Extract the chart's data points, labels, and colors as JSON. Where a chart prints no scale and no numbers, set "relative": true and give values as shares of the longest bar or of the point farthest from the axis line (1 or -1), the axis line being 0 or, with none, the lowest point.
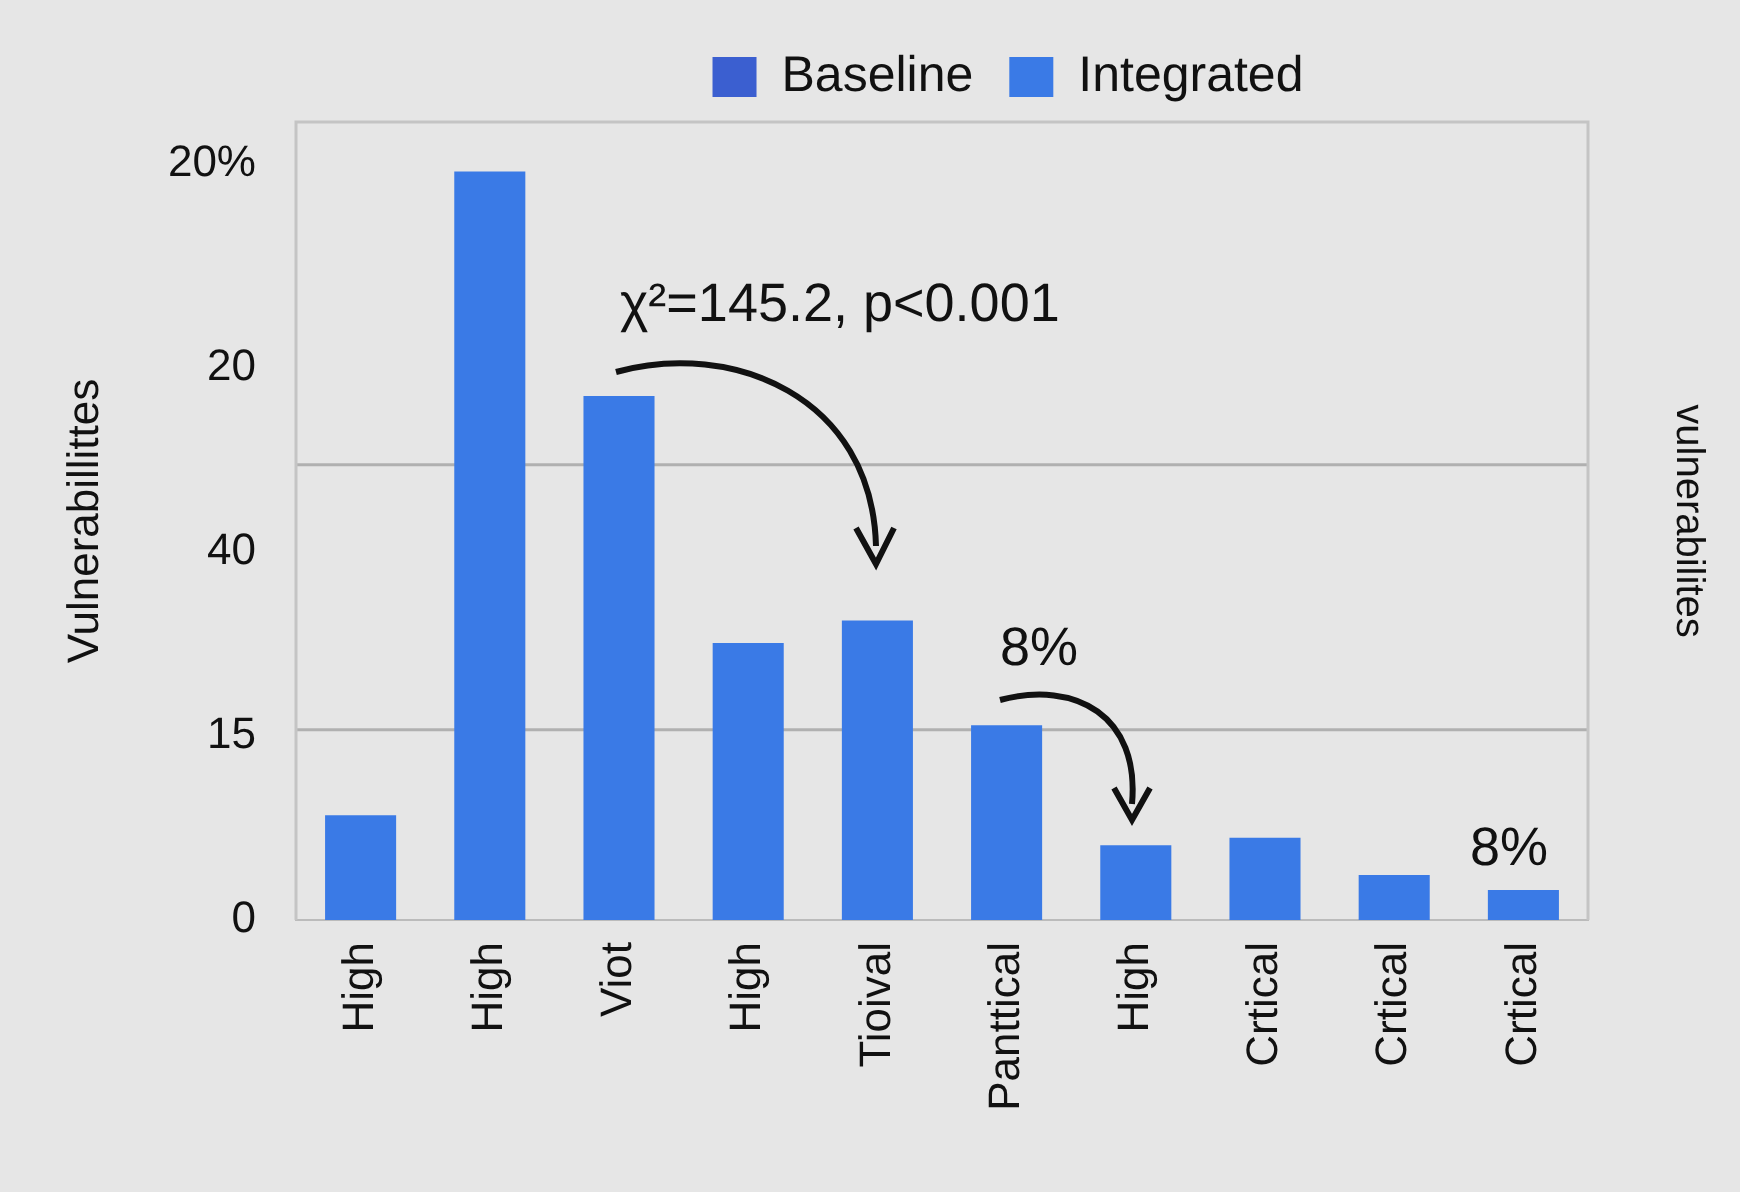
{
  "chart_data": {
    "type": "bar",
    "relative": true,
    "ylabel": "Vulnerabillittes",
    "y2label": "vulnerabilites",
    "categories": [
      "High",
      "High",
      "Viot",
      "High",
      "Tioival",
      "Panttical",
      "High",
      "Crtical",
      "Crtical",
      "Crtical"
    ],
    "series": [
      {
        "name": "Baseline",
        "color": "#3b5fd0",
        "values": [
          null,
          null,
          null,
          null,
          null,
          null,
          null,
          null,
          null,
          null
        ]
      },
      {
        "name": "Integrated",
        "color": "#3a7ae6",
        "values": [
          0.14,
          1,
          0.7,
          0.37,
          0.4,
          0.26,
          0.1,
          0.11,
          0.06,
          0.04
        ]
      }
    ],
    "ref_lines": [
      {
        "axis": "y",
        "value": 0.254,
        "color": "#b0b0b0"
      },
      {
        "axis": "y",
        "value": 0.608,
        "color": "#b0b0b0"
      }
    ],
    "annotations": [
      "20%",
      "20",
      "40",
      "15",
      "0",
      "χ²=145.2, p<0.001",
      "8%",
      "8%"
    ],
    "legend": "top"
  }
}
